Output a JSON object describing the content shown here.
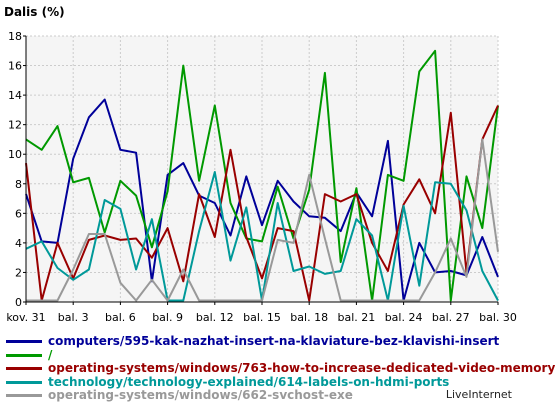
{
  "chart_data": {
    "type": "line",
    "ylabel": "Dalis (%)",
    "ylim": [
      0,
      18
    ],
    "yticks": [
      0,
      2,
      4,
      6,
      8,
      10,
      12,
      14,
      16,
      18
    ],
    "grid": true,
    "x": [
      "kov. 31",
      "bal. 1",
      "bal. 2",
      "bal. 3",
      "bal. 4",
      "bal. 5",
      "bal. 6",
      "bal. 7",
      "bal. 8",
      "bal. 9",
      "bal. 10",
      "bal. 11",
      "bal. 12",
      "bal. 13",
      "bal. 14",
      "bal. 15",
      "bal. 16",
      "bal. 17",
      "bal. 18",
      "bal. 19",
      "bal. 20",
      "bal. 21",
      "bal. 22",
      "bal. 23",
      "bal. 24",
      "bal. 25",
      "bal. 26",
      "bal. 27",
      "bal. 28",
      "bal. 29",
      "bal. 30"
    ],
    "xtick_labels": [
      "kov. 31",
      "bal. 3",
      "bal. 6",
      "bal. 9",
      "bal. 12",
      "bal. 15",
      "bal. 18",
      "bal. 21",
      "bal. 24",
      "bal. 27",
      "bal. 30"
    ],
    "series": [
      {
        "name": "computers/595-kak-nazhat-insert-na-klaviature-bez-klavishi-insert",
        "color": "#000099",
        "values": [
          7.3,
          4.1,
          4.0,
          9.7,
          12.5,
          13.7,
          10.3,
          10.1,
          1.4,
          8.6,
          9.4,
          7.2,
          6.7,
          4.5,
          8.5,
          5.2,
          8.2,
          6.8,
          5.8,
          5.7,
          4.8,
          7.4,
          5.8,
          10.9,
          0.1,
          4.0,
          2.0,
          2.1,
          1.8,
          4.4,
          1.7
        ]
      },
      {
        "name": "/",
        "color": "#009900",
        "values": [
          11.0,
          10.3,
          11.9,
          8.1,
          8.4,
          4.7,
          8.2,
          7.2,
          3.7,
          7.5,
          16.0,
          8.2,
          13.3,
          6.7,
          4.3,
          4.1,
          7.8,
          4.3,
          7.6,
          15.5,
          2.7,
          7.7,
          0.1,
          8.6,
          8.2,
          15.6,
          17.0,
          0.1,
          8.5,
          5.0,
          13.3
        ]
      },
      {
        "name": "operating-systems/windows/763-how-to-increase-dedicated-video-memory",
        "color": "#990000",
        "values": [
          9.4,
          0.1,
          4.0,
          1.6,
          4.2,
          4.5,
          4.2,
          4.3,
          3.0,
          5.0,
          1.4,
          7.3,
          4.4,
          10.3,
          4.4,
          1.6,
          5.0,
          4.8,
          0.1,
          7.3,
          6.8,
          7.3,
          4.0,
          2.1,
          6.6,
          8.3,
          6.0,
          12.8,
          2.0,
          11.0,
          13.3
        ]
      },
      {
        "name": "technology/technology-explained/614-labels-on-hdmi-ports",
        "color": "#009999",
        "values": [
          3.6,
          4.1,
          2.3,
          1.5,
          2.2,
          6.9,
          6.3,
          2.2,
          5.6,
          0.1,
          0.1,
          4.8,
          8.8,
          2.8,
          6.4,
          0.1,
          6.7,
          2.1,
          2.4,
          1.9,
          2.1,
          5.6,
          4.5,
          0.1,
          6.5,
          1.1,
          8.1,
          8.0,
          6.2,
          2.1,
          0.1
        ]
      },
      {
        "name": "operating-systems/windows/662-svchost-exe",
        "color": "#999999",
        "values": [
          0.1,
          0.1,
          0.1,
          2.2,
          4.6,
          4.6,
          1.3,
          0.1,
          1.5,
          0.1,
          2.2,
          0.1,
          0.1,
          0.1,
          0.1,
          0.1,
          4.2,
          4.0,
          8.6,
          4.3,
          0.1,
          0.1,
          0.1,
          0.1,
          0.1,
          0.1,
          2.0,
          4.3,
          1.7,
          11.0,
          3.4
        ]
      }
    ]
  },
  "credit": "LiveInternet"
}
